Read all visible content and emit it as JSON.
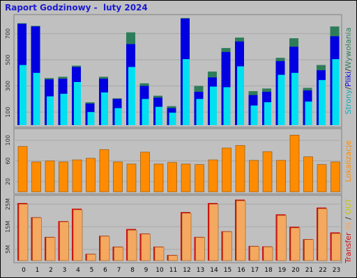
{
  "page_title": "Raport Godzinowy -  luty 2024",
  "colors": {
    "background": "#c0c0c0",
    "panel": "#c0c0c0",
    "hits": "#2e7d5a",
    "files": "#0000e0",
    "pages": "#00e0f0",
    "visits": "#ff8c00",
    "transfer_out": "#d01010",
    "transfer_in": "#f4a860",
    "title": "#1a1ad0"
  },
  "chart_data": [
    {
      "type": "bar",
      "title": "Raport Godzinowy -  luty 2024",
      "right_label_parts": [
        {
          "text": "Strony",
          "color": "#00b0c0"
        },
        {
          "text": "/",
          "color": "#303030"
        },
        {
          "text": "Pliki",
          "color": "#0000e0"
        },
        {
          "text": "/",
          "color": "#303030"
        },
        {
          "text": "Wywołania",
          "color": "#2e7d5a"
        }
      ],
      "y_ticks": [
        100,
        300,
        500,
        700
      ],
      "ylim": [
        0,
        830
      ],
      "categories": [
        "0",
        "1",
        "2",
        "3",
        "4",
        "5",
        "6",
        "7",
        "8",
        "9",
        "10",
        "11",
        "12",
        "13",
        "14",
        "15",
        "16",
        "17",
        "18",
        "19",
        "20",
        "21",
        "22",
        "23"
      ],
      "series": [
        {
          "name": "Wywołania",
          "values": [
            780,
            760,
            360,
            370,
            455,
            175,
            370,
            205,
            710,
            320,
            225,
            145,
            820,
            300,
            410,
            590,
            670,
            260,
            280,
            515,
            665,
            285,
            460,
            755
          ]
        },
        {
          "name": "Pliki",
          "values": [
            775,
            755,
            350,
            355,
            445,
            165,
            355,
            200,
            620,
            300,
            210,
            130,
            815,
            255,
            365,
            560,
            640,
            230,
            255,
            490,
            600,
            265,
            420,
            680
          ]
        },
        {
          "name": "Strony",
          "values": [
            460,
            400,
            220,
            240,
            330,
            100,
            250,
            130,
            445,
            200,
            140,
            95,
            505,
            200,
            295,
            290,
            450,
            150,
            175,
            385,
            400,
            180,
            345,
            505
          ]
        }
      ]
    },
    {
      "type": "bar",
      "right_label_parts": [
        {
          "text": "Lokalizacje",
          "color": "#ff8c00"
        }
      ],
      "y_ticks": [
        20,
        60,
        100
      ],
      "ylim": [
        0,
        120
      ],
      "categories": [
        "0",
        "1",
        "2",
        "3",
        "4",
        "5",
        "6",
        "7",
        "8",
        "9",
        "10",
        "11",
        "12",
        "13",
        "14",
        "15",
        "16",
        "17",
        "18",
        "19",
        "20",
        "21",
        "22",
        "23"
      ],
      "series": [
        {
          "name": "Lokalizacje",
          "values": [
            88,
            58,
            60,
            58,
            62,
            65,
            82,
            58,
            54,
            77,
            54,
            57,
            54,
            53,
            62,
            85,
            90,
            61,
            78,
            61,
            110,
            68,
            53,
            58
          ]
        }
      ]
    },
    {
      "type": "bar",
      "right_label_parts": [
        {
          "text": "Transfer",
          "color": "#d01010"
        },
        {
          "text": " IN",
          "color": "#f4a860"
        },
        {
          "text": " / ",
          "color": "#303030"
        },
        {
          "text": "OUT",
          "color": "#c8c800"
        }
      ],
      "y_ticks": [
        "5M",
        "15M",
        "25M"
      ],
      "y_tick_values": [
        5,
        15,
        25
      ],
      "ylim": [
        0,
        28
      ],
      "categories": [
        "0",
        "1",
        "2",
        "3",
        "4",
        "5",
        "6",
        "7",
        "8",
        "9",
        "10",
        "11",
        "12",
        "13",
        "14",
        "15",
        "16",
        "17",
        "18",
        "19",
        "20",
        "21",
        "22",
        "23"
      ],
      "series": [
        {
          "name": "OUT",
          "values": [
            25.5,
            19.2,
            10.5,
            17.5,
            23.0,
            3.0,
            11.0,
            6.2,
            14.0,
            12.0,
            6.2,
            2.5,
            21.5,
            10.5,
            25.5,
            13.0,
            27.0,
            6.5,
            6.3,
            20.5,
            15.0,
            9.5,
            23.5,
            12.5
          ]
        },
        {
          "name": "IN",
          "values": [
            25.0,
            19.0,
            10.3,
            17.2,
            22.5,
            2.8,
            10.8,
            6.0,
            13.5,
            11.8,
            6.0,
            2.3,
            21.0,
            10.3,
            25.0,
            12.8,
            26.5,
            6.3,
            6.1,
            20.0,
            14.5,
            9.3,
            23.0,
            12.0
          ]
        }
      ]
    }
  ]
}
